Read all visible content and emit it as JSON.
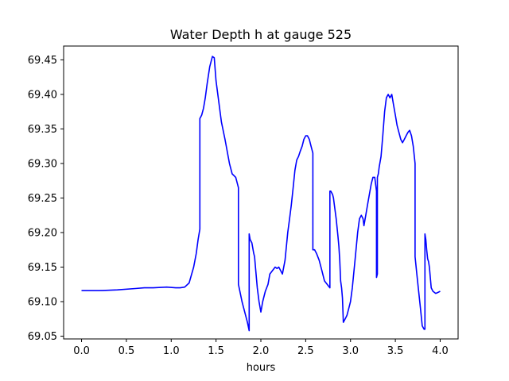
{
  "chart_data": {
    "type": "line",
    "title": "Water Depth h at gauge 525",
    "xlabel": "hours",
    "ylabel": "",
    "xlim": [
      -0.2,
      4.2
    ],
    "ylim": [
      69.046,
      69.47
    ],
    "x_ticks": [
      0.0,
      0.5,
      1.0,
      1.5,
      2.0,
      2.5,
      3.0,
      3.5,
      4.0
    ],
    "x_tick_labels": [
      "0.0",
      "0.5",
      "1.0",
      "1.5",
      "2.0",
      "2.5",
      "3.0",
      "3.5",
      "4.0"
    ],
    "y_ticks": [
      69.05,
      69.1,
      69.15,
      69.2,
      69.25,
      69.3,
      69.35,
      69.4,
      69.45
    ],
    "y_tick_labels": [
      "69.05",
      "69.10",
      "69.15",
      "69.20",
      "69.25",
      "69.30",
      "69.35",
      "69.40",
      "69.45"
    ],
    "grid": false,
    "series": [
      {
        "color": "#0000ff",
        "x": [
          0.0,
          0.2,
          0.4,
          0.6,
          0.7,
          0.8,
          0.95,
          1.05,
          1.1,
          1.15,
          1.2,
          1.25,
          1.28,
          1.3,
          1.32,
          1.32,
          1.34,
          1.36,
          1.38,
          1.4,
          1.43,
          1.46,
          1.48,
          1.5,
          1.53,
          1.56,
          1.6,
          1.65,
          1.68,
          1.72,
          1.75,
          1.75,
          1.79,
          1.82,
          1.85,
          1.87,
          1.87,
          1.88,
          1.9,
          1.92,
          1.93,
          1.94,
          1.96,
          1.98,
          2.0,
          2.02,
          2.05,
          2.08,
          2.1,
          2.13,
          2.16,
          2.18,
          2.2,
          2.22,
          2.24,
          2.27,
          2.3,
          2.32,
          2.34,
          2.36,
          2.38,
          2.4,
          2.42,
          2.44,
          2.46,
          2.48,
          2.5,
          2.52,
          2.54,
          2.56,
          2.58,
          2.58,
          2.6,
          2.62,
          2.65,
          2.68,
          2.71,
          2.74,
          2.77,
          2.77,
          2.78,
          2.8,
          2.81,
          2.82,
          2.84,
          2.86,
          2.87,
          2.88,
          2.89,
          2.9,
          2.91,
          2.92,
          2.94,
          2.96,
          2.98,
          3.0,
          3.02,
          3.05,
          3.08,
          3.1,
          3.12,
          3.14,
          3.15,
          3.17,
          3.19,
          3.21,
          3.23,
          3.25,
          3.27,
          3.29,
          3.29,
          3.3,
          3.3,
          3.31,
          3.32,
          3.34,
          3.36,
          3.38,
          3.4,
          3.42,
          3.44,
          3.46,
          3.48,
          3.5,
          3.52,
          3.54,
          3.56,
          3.58,
          3.6,
          3.62,
          3.64,
          3.66,
          3.68,
          3.7,
          3.72,
          3.72,
          3.74,
          3.76,
          3.78,
          3.8,
          3.82,
          3.83,
          3.83,
          3.84,
          3.85,
          3.86,
          3.87,
          3.88,
          3.9,
          3.92,
          3.95,
          3.97,
          4.0
        ],
        "y": [
          69.116,
          69.116,
          69.117,
          69.119,
          69.12,
          69.12,
          69.121,
          69.12,
          69.12,
          69.121,
          69.127,
          69.15,
          69.17,
          69.19,
          69.205,
          69.365,
          69.37,
          69.38,
          69.395,
          69.415,
          69.44,
          69.455,
          69.453,
          69.42,
          69.39,
          69.36,
          69.335,
          69.3,
          69.285,
          69.28,
          69.265,
          69.125,
          69.1,
          69.085,
          69.07,
          69.058,
          69.198,
          69.19,
          69.185,
          69.17,
          69.165,
          69.15,
          69.12,
          69.1,
          69.085,
          69.1,
          69.115,
          69.125,
          69.14,
          69.145,
          69.15,
          69.148,
          69.15,
          69.145,
          69.14,
          69.16,
          69.2,
          69.22,
          69.24,
          69.265,
          69.29,
          69.305,
          69.31,
          69.318,
          69.325,
          69.335,
          69.34,
          69.34,
          69.335,
          69.325,
          69.315,
          69.175,
          69.175,
          69.17,
          69.16,
          69.145,
          69.13,
          69.125,
          69.12,
          69.26,
          69.26,
          69.255,
          69.25,
          69.24,
          69.22,
          69.195,
          69.18,
          69.16,
          69.13,
          69.12,
          69.105,
          69.07,
          69.075,
          69.08,
          69.09,
          69.1,
          69.12,
          69.16,
          69.2,
          69.22,
          69.225,
          69.22,
          69.21,
          69.225,
          69.24,
          69.255,
          69.27,
          69.28,
          69.28,
          69.26,
          69.135,
          69.14,
          69.28,
          69.285,
          69.295,
          69.31,
          69.34,
          69.375,
          69.395,
          69.4,
          69.395,
          69.4,
          69.385,
          69.37,
          69.355,
          69.345,
          69.335,
          69.33,
          69.335,
          69.34,
          69.345,
          69.348,
          69.34,
          69.325,
          69.3,
          69.165,
          69.14,
          69.115,
          69.09,
          69.065,
          69.06,
          69.06,
          69.198,
          69.19,
          69.175,
          69.162,
          69.158,
          69.15,
          69.12,
          69.115,
          69.112,
          69.113,
          69.115
        ]
      }
    ]
  }
}
